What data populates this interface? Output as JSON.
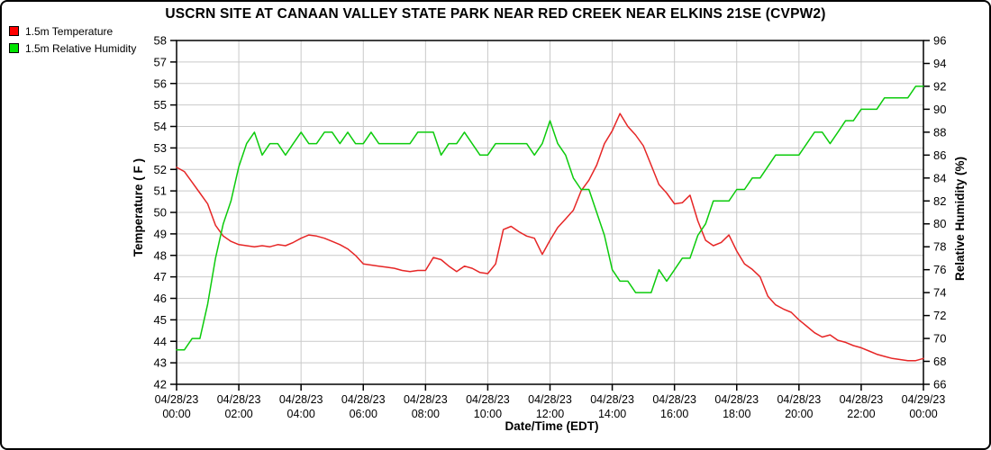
{
  "title": "USCRN SITE AT CANAAN VALLEY STATE PARK NEAR RED CREEK NEAR ELKINS 21SE (CVPW2)",
  "chart_data": {
    "type": "line",
    "title": "USCRN SITE AT CANAAN VALLEY STATE PARK NEAR RED CREEK NEAR ELKINS 21SE (CVPW2)",
    "grid": true,
    "grid_color": "#c9c9c9",
    "x_axis": {
      "label": "Date/Time (EDT)",
      "hours_span": 24,
      "tick_interval_hours": 2,
      "ticks": [
        {
          "date": "04/28/23",
          "time": "00:00"
        },
        {
          "date": "04/28/23",
          "time": "02:00"
        },
        {
          "date": "04/28/23",
          "time": "04:00"
        },
        {
          "date": "04/28/23",
          "time": "06:00"
        },
        {
          "date": "04/28/23",
          "time": "08:00"
        },
        {
          "date": "04/28/23",
          "time": "10:00"
        },
        {
          "date": "04/28/23",
          "time": "12:00"
        },
        {
          "date": "04/28/23",
          "time": "14:00"
        },
        {
          "date": "04/28/23",
          "time": "16:00"
        },
        {
          "date": "04/28/23",
          "time": "18:00"
        },
        {
          "date": "04/28/23",
          "time": "20:00"
        },
        {
          "date": "04/28/23",
          "time": "22:00"
        },
        {
          "date": "04/29/23",
          "time": "00:00"
        }
      ]
    },
    "y_axis_left": {
      "label": "Temperature ( F )",
      "min": 42,
      "max": 58,
      "tick_step": 1
    },
    "y_axis_right": {
      "label": "Relative Humidity (%)",
      "min": 66,
      "max": 96,
      "tick_step": 2
    },
    "series": [
      {
        "name": "1.5m Temperature",
        "axis": "left",
        "color": "#e62626",
        "legend_swatch_color": "#ff0000",
        "start_hour": 0,
        "step_minutes": 15,
        "values": [
          52.1,
          51.9,
          51.4,
          50.9,
          50.4,
          49.4,
          48.9,
          48.65,
          48.5,
          48.45,
          48.4,
          48.45,
          48.4,
          48.5,
          48.45,
          48.6,
          48.8,
          48.95,
          48.9,
          48.8,
          48.65,
          48.5,
          48.3,
          48.0,
          47.6,
          47.55,
          47.5,
          47.45,
          47.4,
          47.3,
          47.25,
          47.3,
          47.3,
          47.9,
          47.8,
          47.5,
          47.25,
          47.5,
          47.4,
          47.2,
          47.15,
          47.6,
          49.2,
          49.35,
          49.1,
          48.9,
          48.8,
          48.05,
          48.7,
          49.3,
          49.7,
          50.1,
          51.0,
          51.5,
          52.2,
          53.2,
          53.8,
          54.6,
          54.0,
          53.6,
          53.1,
          52.2,
          51.3,
          50.9,
          50.4,
          50.45,
          50.8,
          49.6,
          48.7,
          48.45,
          48.6,
          48.95,
          48.2,
          47.6,
          47.35,
          47.0,
          46.1,
          45.7,
          45.5,
          45.35,
          45.0,
          44.7,
          44.4,
          44.2,
          44.3,
          44.05,
          43.95,
          43.8,
          43.7,
          43.55,
          43.4,
          43.3,
          43.2,
          43.15,
          43.1,
          43.1,
          43.2
        ]
      },
      {
        "name": "1.5m Relative Humidity",
        "axis": "right",
        "color": "#0ccb0c",
        "legend_swatch_color": "#00e400",
        "start_hour": 0,
        "step_minutes": 15,
        "values": [
          69,
          69,
          70,
          70,
          73,
          77,
          80,
          82,
          85,
          87,
          88,
          86,
          87,
          87,
          86,
          87,
          88,
          87,
          87,
          88,
          88,
          87,
          88,
          87,
          87,
          88,
          87,
          87,
          87,
          87,
          87,
          88,
          88,
          88,
          86,
          87,
          87,
          88,
          87,
          86,
          86,
          87,
          87,
          87,
          87,
          87,
          86,
          87,
          89,
          87,
          86,
          84,
          83,
          83,
          81,
          79,
          76,
          75,
          75,
          74,
          74,
          74,
          76,
          75,
          76,
          77,
          77,
          79,
          80,
          82,
          82,
          82,
          83,
          83,
          84,
          84,
          85,
          86,
          86,
          86,
          86,
          87,
          88,
          88,
          87,
          88,
          89,
          89,
          90,
          90,
          90,
          91,
          91,
          91,
          91,
          92,
          92
        ]
      }
    ]
  }
}
